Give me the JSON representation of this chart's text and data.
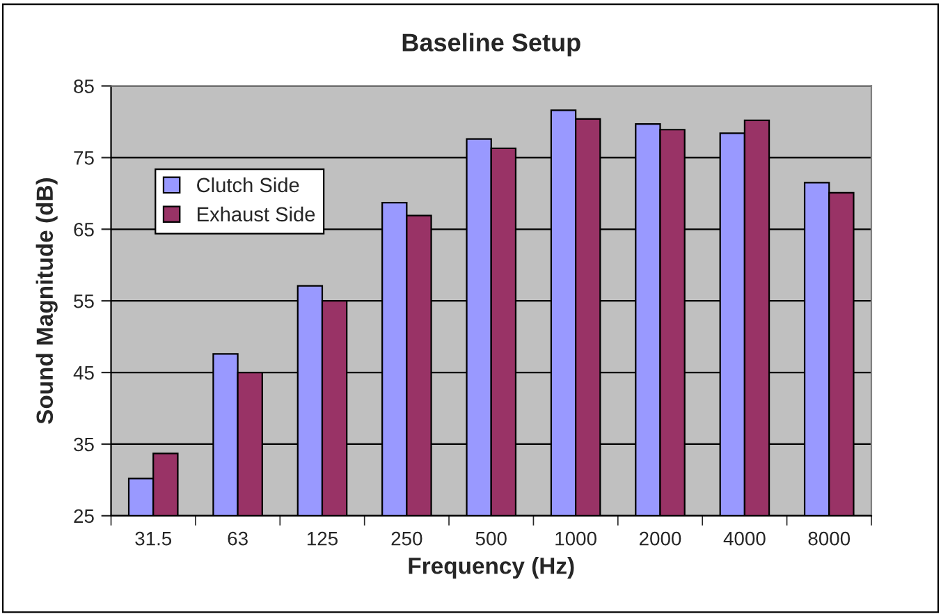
{
  "chart_data": {
    "type": "bar",
    "title": "Baseline Setup",
    "xlabel": "Frequency (Hz)",
    "ylabel": "Sound Magnitude (dB)",
    "categories": [
      "31.5",
      "63",
      "125",
      "250",
      "500",
      "1000",
      "2000",
      "4000",
      "8000"
    ],
    "series": [
      {
        "name": "Clutch Side",
        "color": "#9999ff",
        "values": [
          30.2,
          47.6,
          57.1,
          68.7,
          77.6,
          81.6,
          79.7,
          78.4,
          71.5
        ]
      },
      {
        "name": "Exhaust Side",
        "color": "#993366",
        "values": [
          33.7,
          45,
          55,
          66.9,
          76.3,
          80.4,
          78.9,
          80.2,
          70.1
        ]
      }
    ],
    "ylim": [
      25,
      85
    ],
    "yticks": [
      25,
      35,
      45,
      55,
      65,
      75,
      85
    ],
    "grid": "y",
    "legend": "top left"
  }
}
